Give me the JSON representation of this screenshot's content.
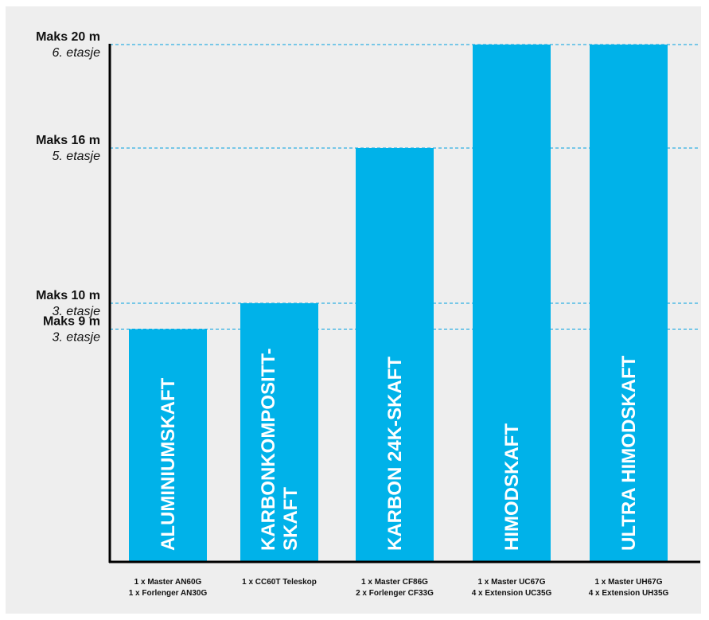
{
  "colors": {
    "background": "#eeeeee",
    "bar": "#00b2e9",
    "gridline": "#00a0e0",
    "axis": "#000000",
    "text": "#111111",
    "bar_text": "#ffffff"
  },
  "chart_data": {
    "type": "bar",
    "title": "",
    "xlabel": "",
    "ylabel": "",
    "unit": "m",
    "ylim": [
      0,
      20
    ],
    "grid": "dashed reference lines at each max height level",
    "levels": [
      {
        "value": 20,
        "height_label": "Maks 20 m",
        "floor_label": "6. etasje"
      },
      {
        "value": 16,
        "height_label": "Maks 16 m",
        "floor_label": "5. etasje"
      },
      {
        "value": 10,
        "height_label": "Maks 10 m",
        "floor_label": "3. etasje"
      },
      {
        "value": 9,
        "height_label": "Maks 9 m",
        "floor_label": "3. etasje"
      }
    ],
    "categories": [
      "ALUMINIUMSKAFT",
      "KARBONKOMPOSITT-SKAFT",
      "KARBON 24K-SKAFT",
      "HIMODSKAFT",
      "ULTRA HIMODSKAFT"
    ],
    "values": [
      9,
      10,
      16,
      20,
      20
    ],
    "bars": [
      {
        "label_lines": [
          "ALUMINIUMSKAFT"
        ],
        "value": 9,
        "models": [
          "1 x Master AN60G",
          "1 x Forlenger AN30G"
        ]
      },
      {
        "label_lines": [
          "KARBONKOMPOSITT-",
          "SKAFT"
        ],
        "value": 10,
        "models": [
          "1 x CC60T Teleskop"
        ]
      },
      {
        "label_lines": [
          "KARBON 24K-SKAFT"
        ],
        "value": 16,
        "models": [
          "1 x Master CF86G",
          "2 x Forlenger CF33G"
        ]
      },
      {
        "label_lines": [
          "HIMODSKAFT"
        ],
        "value": 20,
        "models": [
          "1 x Master UC67G",
          "4 x Extension UC35G"
        ]
      },
      {
        "label_lines": [
          "ULTRA HIMODSKAFT"
        ],
        "value": 20,
        "models": [
          "1 x Master UH67G",
          "4 x Extension UH35G"
        ]
      }
    ]
  }
}
